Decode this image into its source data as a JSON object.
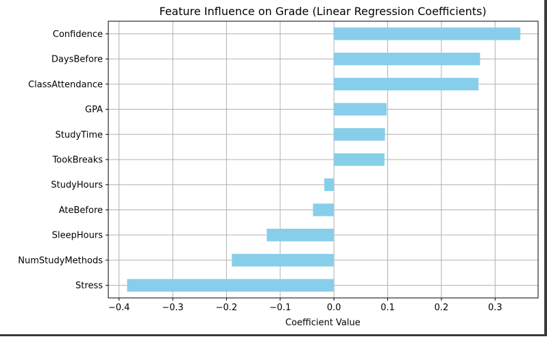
{
  "chart_data": {
    "type": "bar",
    "orientation": "horizontal",
    "title": "Feature Influence on Grade (Linear Regression Coefficients)",
    "xlabel": "Coefficient Value",
    "ylabel": "",
    "categories": [
      "Confidence",
      "DaysBefore",
      "ClassAttendance",
      "GPA",
      "StudyTime",
      "TookBreaks",
      "StudyHours",
      "AteBefore",
      "SleepHours",
      "NumStudyMethods",
      "Stress"
    ],
    "values": [
      0.347,
      0.272,
      0.269,
      0.098,
      0.095,
      0.094,
      -0.018,
      -0.039,
      -0.125,
      -0.19,
      -0.385
    ],
    "xlim": [
      -0.42,
      0.38
    ],
    "xticks": [
      -0.4,
      -0.3,
      -0.2,
      -0.1,
      0.0,
      0.1,
      0.2,
      0.3
    ],
    "xtick_labels": [
      "−0.4",
      "−0.3",
      "−0.2",
      "−0.1",
      "0.0",
      "0.1",
      "0.2",
      "0.3"
    ],
    "grid": true,
    "bar_color": "#87ceeb"
  }
}
